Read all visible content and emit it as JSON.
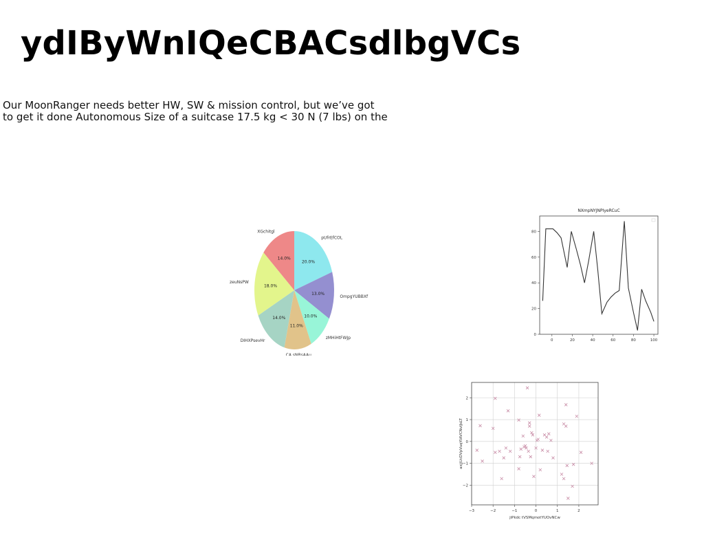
{
  "slide": {
    "title": "ydIByWnIQeCBACsdlbgVCs",
    "body_lines": [
      "Our MoonRanger needs better HW, SW & mission control, but we’ve got",
      "to get it done Autonomous Size of a suitcase 17.5 kg < 30 N (7 lbs) on the"
    ]
  },
  "chart_data": [
    {
      "type": "pie",
      "labels": [
        "pUfrEfCOL",
        "OmpgYUBBXf",
        "zMHiHtFWJp",
        "CA sNRsAAu",
        "DIHXPsevHr",
        "zeuNsPW",
        "XGchitgl"
      ],
      "values": [
        20.0,
        13.0,
        10.0,
        11.0,
        14.0,
        18.0,
        14.0
      ],
      "value_labels": [
        "20.0%",
        "13.0%",
        "10.0%",
        "11.0%",
        "14.0%",
        "18.0%",
        "14.0%"
      ],
      "colors": [
        "#8ee8ee",
        "#948fd0",
        "#98f5d8",
        "#e1c38a",
        "#a6d4c4",
        "#e3f58c",
        "#ee8888"
      ]
    },
    {
      "type": "line",
      "title": "NXmpNYJNPIyeRCuC",
      "x": [
        -9,
        -6,
        -3,
        1,
        5,
        9,
        15,
        19,
        24,
        28,
        32,
        36,
        41,
        45,
        49,
        54,
        58,
        62,
        66,
        71,
        75,
        80,
        84,
        88,
        92,
        97,
        100
      ],
      "y": [
        26,
        82,
        82,
        82,
        79,
        75,
        52,
        80,
        66,
        54,
        40,
        57,
        80,
        50,
        16,
        25,
        29,
        32,
        34,
        88,
        36,
        17,
        3,
        35,
        26,
        17,
        10
      ],
      "xlim": [
        -12,
        104
      ],
      "ylim": [
        0,
        92
      ],
      "xticks": [
        0,
        20,
        40,
        60,
        80,
        100
      ],
      "yticks": [
        0,
        20,
        40,
        60,
        80
      ],
      "color": "#333333"
    },
    {
      "type": "scatter",
      "xlabel": "jiPkdc tVSMqmotYUOvNCw",
      "ylabel": "axjjUcDVpVuqYIAVCNvIJsLT",
      "xlim": [
        -3,
        2.9
      ],
      "ylim": [
        -2.9,
        2.7
      ],
      "xticks": [
        -3,
        -2,
        -1,
        0,
        1,
        2
      ],
      "yticks": [
        -2,
        -1,
        0,
        1,
        2
      ],
      "grid": true,
      "marker": "x",
      "color": "#c88ca6",
      "points": [
        [
          -2.75,
          -0.4
        ],
        [
          -2.6,
          0.72
        ],
        [
          -2.5,
          -0.9
        ],
        [
          -2.0,
          0.6
        ],
        [
          -1.9,
          1.97
        ],
        [
          -1.9,
          -0.5
        ],
        [
          -1.7,
          -0.45
        ],
        [
          -1.6,
          -1.7
        ],
        [
          -1.5,
          -0.75
        ],
        [
          -1.4,
          -0.3
        ],
        [
          -1.3,
          1.4
        ],
        [
          -1.2,
          -0.45
        ],
        [
          -0.8,
          0.98
        ],
        [
          -0.8,
          -1.25
        ],
        [
          -0.75,
          -0.7
        ],
        [
          -0.7,
          -0.35
        ],
        [
          -0.6,
          0.25
        ],
        [
          -0.55,
          -0.25
        ],
        [
          -0.5,
          -0.2
        ],
        [
          -0.4,
          2.45
        ],
        [
          -0.35,
          -0.45
        ],
        [
          -0.3,
          0.7
        ],
        [
          -0.3,
          0.85
        ],
        [
          -0.25,
          -0.7
        ],
        [
          -0.2,
          0.4
        ],
        [
          -0.15,
          0.3
        ],
        [
          -0.1,
          -1.6
        ],
        [
          0.0,
          -0.3
        ],
        [
          0.1,
          0.1
        ],
        [
          0.15,
          1.2
        ],
        [
          0.2,
          -1.3
        ],
        [
          0.3,
          -0.4
        ],
        [
          0.4,
          0.3
        ],
        [
          0.5,
          0.2
        ],
        [
          0.55,
          -0.45
        ],
        [
          0.6,
          0.35
        ],
        [
          0.7,
          0.05
        ],
        [
          0.8,
          -0.75
        ],
        [
          1.2,
          -1.5
        ],
        [
          1.3,
          -1.7
        ],
        [
          1.3,
          0.8
        ],
        [
          1.4,
          0.7
        ],
        [
          1.4,
          1.68
        ],
        [
          1.45,
          -1.1
        ],
        [
          1.5,
          -2.6
        ],
        [
          1.7,
          -2.05
        ],
        [
          1.75,
          -1.05
        ],
        [
          1.9,
          1.15
        ],
        [
          2.1,
          -0.5
        ],
        [
          2.6,
          -1.0
        ],
        [
          -0.45,
          -0.3
        ],
        [
          0.05,
          0.05
        ]
      ]
    }
  ]
}
